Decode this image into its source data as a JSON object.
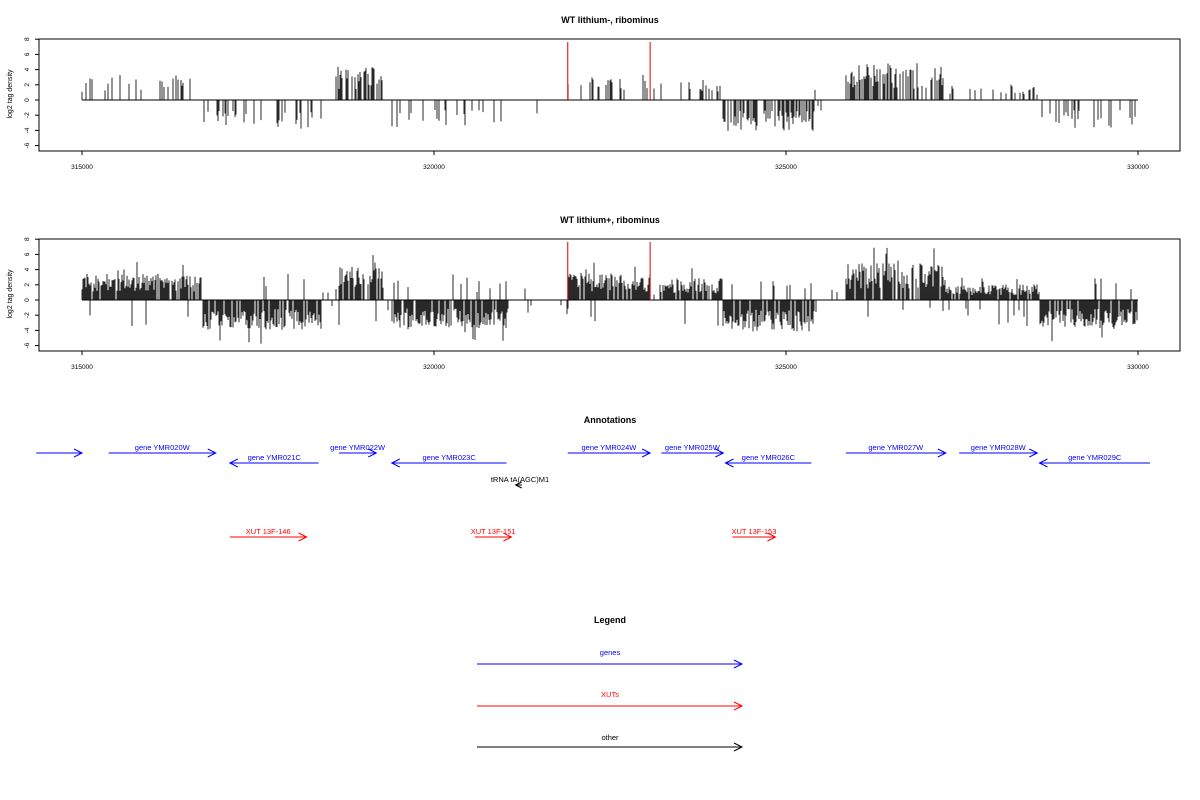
{
  "chart_data": [
    {
      "type": "bar",
      "title": "WT lithium-, ribominus",
      "xlabel": "",
      "ylabel": "log2 tag density",
      "xlim": [
        315000,
        330000
      ],
      "ylim": [
        -6,
        8
      ],
      "x_ticks": [
        "315000",
        "320000",
        "325000",
        "330000"
      ],
      "y_ticks": [
        "8",
        "6",
        "4",
        "2",
        "0",
        "-2",
        "-4",
        "-6"
      ],
      "markers": [
        321900,
        323070
      ],
      "marker_color": "#e00000",
      "density": "sparse"
    },
    {
      "type": "bar",
      "title": "WT lithium+, ribominus",
      "xlabel": "",
      "ylabel": "log2 tag density",
      "xlim": [
        315000,
        330000
      ],
      "ylim": [
        -6,
        8
      ],
      "x_ticks": [
        "315000",
        "320000",
        "325000",
        "330000"
      ],
      "y_ticks": [
        "8",
        "6",
        "4",
        "2",
        "0",
        "-2",
        "-4",
        "-6"
      ],
      "markers": [
        321900,
        323070
      ],
      "marker_color": "#e00000",
      "density": "dense"
    }
  ],
  "annotations": {
    "title": "Annotations",
    "genes": [
      {
        "label": "",
        "start": 314350,
        "end": 315000,
        "strand": "+"
      },
      {
        "label": "gene YMR020W",
        "start": 315380,
        "end": 316900,
        "strand": "+"
      },
      {
        "label": "gene YMR021C",
        "start": 317100,
        "end": 318360,
        "strand": "-"
      },
      {
        "label": "gene YMR022W",
        "start": 318650,
        "end": 319180,
        "strand": "+"
      },
      {
        "label": "gene YMR023C",
        "start": 319400,
        "end": 321030,
        "strand": "-"
      },
      {
        "label": "gene YMR024W",
        "start": 321900,
        "end": 323070,
        "strand": "+"
      },
      {
        "label": "gene YMR025W",
        "start": 323230,
        "end": 324110,
        "strand": "+"
      },
      {
        "label": "gene YMR026C",
        "start": 324140,
        "end": 325360,
        "strand": "-"
      },
      {
        "label": "gene YMR027W",
        "start": 325850,
        "end": 327270,
        "strand": "+"
      },
      {
        "label": "gene YMR028W",
        "start": 327460,
        "end": 328570,
        "strand": "+"
      },
      {
        "label": "gene YMR029C",
        "start": 328600,
        "end": 330170,
        "strand": "-"
      }
    ],
    "xuts": [
      {
        "label": "XUT 13F-146",
        "start": 317100,
        "end": 318190,
        "strand": "+"
      },
      {
        "label": "XUT 13F-151",
        "start": 320580,
        "end": 321100,
        "strand": "+"
      },
      {
        "label": "XUT 13F-153",
        "start": 324240,
        "end": 324850,
        "strand": "+"
      }
    ],
    "other": [
      {
        "label": "tRNA tA(AGC)M1",
        "start": 321160,
        "end": 321250,
        "strand": "-"
      }
    ],
    "colors": {
      "genes": "#0000ff",
      "xuts": "#ff0000",
      "other": "#000000"
    }
  },
  "legend": {
    "title": "Legend",
    "items": [
      {
        "label": "genes",
        "color": "#0000ff"
      },
      {
        "label": "XUTs",
        "color": "#ff0000"
      },
      {
        "label": "other",
        "color": "#000000"
      }
    ]
  }
}
